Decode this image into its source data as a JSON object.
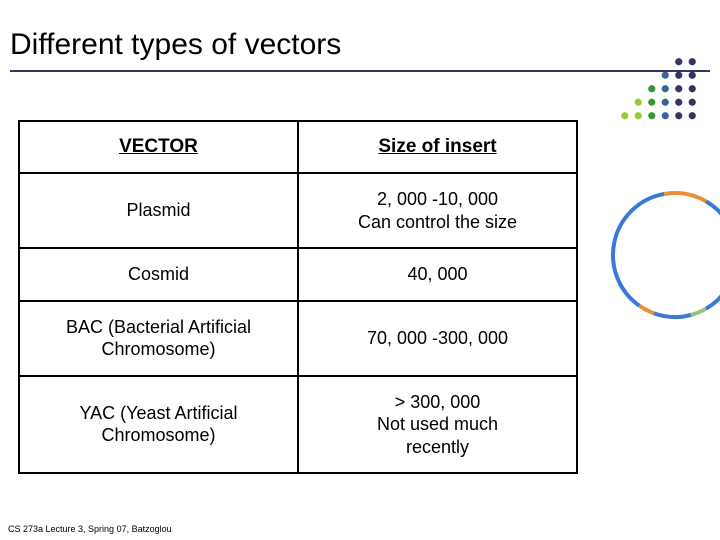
{
  "title": "Different types of vectors",
  "footer": "CS 273a Lecture 3, Spring 07, Batzoglou",
  "table": {
    "columns": [
      "VECTOR",
      "Size of insert"
    ],
    "rows": [
      [
        "Plasmid",
        "2, 000 -10, 000\nCan control the size"
      ],
      [
        "Cosmid",
        "40, 000"
      ],
      [
        "BAC (Bacterial Artificial\nChromosome)",
        "70, 000 -300, 000"
      ],
      [
        "YAC (Yeast Artificial\nChromosome)",
        "> 300, 000\nNot used much\nrecently"
      ]
    ],
    "border_color": "#000000",
    "header_fontsize": 19,
    "cell_fontsize": 18
  },
  "dot_grid": {
    "colors": [
      "#99cc33",
      "#339933",
      "#336699",
      "#333366"
    ],
    "dot_radius": 3.2,
    "cols": 6,
    "rows": 5,
    "spacing": 12,
    "pattern": [
      [
        null,
        null,
        null,
        null,
        3,
        3
      ],
      [
        null,
        null,
        null,
        2,
        3,
        3
      ],
      [
        null,
        null,
        1,
        2,
        3,
        3
      ],
      [
        null,
        0,
        1,
        2,
        3,
        3
      ],
      [
        0,
        0,
        1,
        2,
        3,
        3
      ]
    ]
  },
  "plasmid_ring": {
    "radius": 62,
    "stroke_width": 4,
    "segments": [
      {
        "start": 0,
        "end": 30,
        "color": "#e69138"
      },
      {
        "start": 30,
        "end": 150,
        "color": "#3c78d8"
      },
      {
        "start": 150,
        "end": 165,
        "color": "#93c47d"
      },
      {
        "start": 165,
        "end": 200,
        "color": "#3c78d8"
      },
      {
        "start": 200,
        "end": 215,
        "color": "#e69138"
      },
      {
        "start": 215,
        "end": 350,
        "color": "#3c78d8"
      },
      {
        "start": 350,
        "end": 360,
        "color": "#e69138"
      }
    ]
  }
}
